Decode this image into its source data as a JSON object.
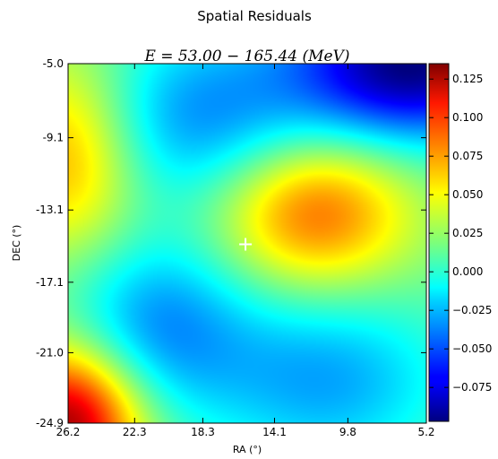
{
  "chart_data": {
    "type": "heatmap",
    "suptitle": "Spatial Residuals",
    "title": "E = 53.00 − 165.44 (MeV)",
    "xlabel": "RA (°)",
    "ylabel": "DEC (°)",
    "x_ticks": [
      "26.2",
      "22.3",
      "18.3",
      "14.1",
      "9.8",
      "5.2"
    ],
    "y_ticks": [
      "-5.0",
      "-9.1",
      "-13.1",
      "-17.1",
      "-21.0",
      "-24.9"
    ],
    "xlim": [
      26.2,
      5.2
    ],
    "ylim": [
      -24.9,
      -5.0
    ],
    "colorbar_ticks": [
      "0.125",
      "0.100",
      "0.075",
      "0.050",
      "0.025",
      "0.000",
      "−0.025",
      "−0.050",
      "−0.075"
    ],
    "colorbar_range": [
      -0.097,
      0.135
    ],
    "colormap": "jet",
    "baseline_value": 0.015,
    "features": [
      {
        "ra": 11.8,
        "dec": -13.2,
        "value": 0.085
      },
      {
        "ra": 26.2,
        "dec": -10.0,
        "value": 0.072
      },
      {
        "ra": 26.2,
        "dec": -24.9,
        "value": 0.13
      },
      {
        "ra": 6.0,
        "dec": -5.0,
        "value": -0.097
      },
      {
        "ra": 18.5,
        "dec": -8.0,
        "value": -0.035
      },
      {
        "ra": 21.0,
        "dec": -19.5,
        "value": -0.035
      },
      {
        "ra": 11.0,
        "dec": -22.5,
        "value": -0.03
      }
    ],
    "marker": {
      "ra": 15.8,
      "dec": -15.0,
      "symbol": "+",
      "color": "#ffffff"
    }
  }
}
